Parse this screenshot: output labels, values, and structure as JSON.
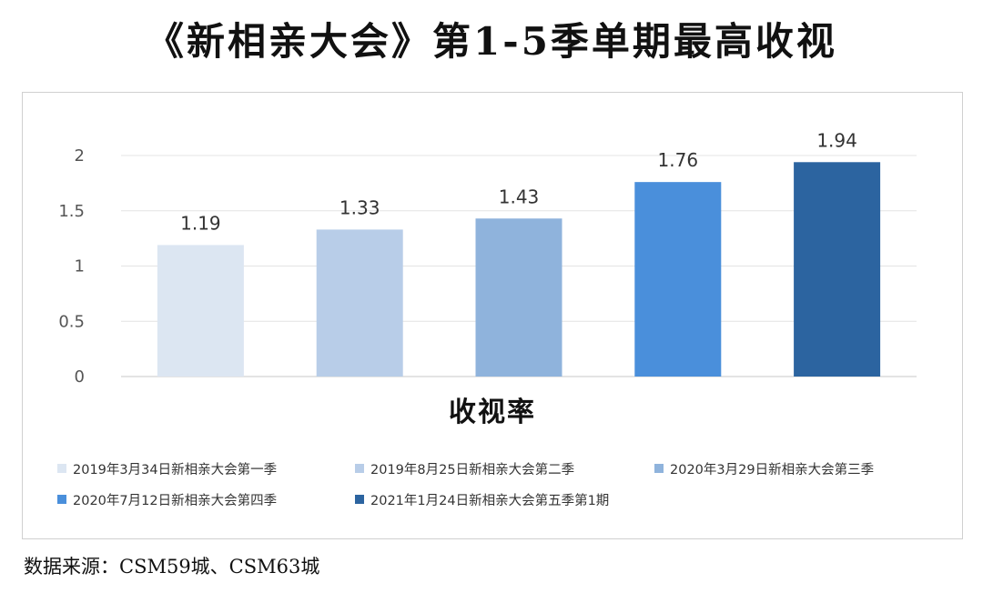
{
  "title": "《新相亲大会》第1-5季单期最高收视",
  "source": "数据来源：CSM59城、CSM63城",
  "chart_data": {
    "type": "bar",
    "title": "《新相亲大会》第1-5季单期最高收视",
    "xlabel": "收视率",
    "ylabel": "",
    "ylim": [
      0,
      2
    ],
    "yticks": [
      "0",
      "0.5",
      "1",
      "1.5",
      "2"
    ],
    "grid": true,
    "legend_position": "bottom",
    "categories": [
      "2019年3月34日新相亲大会第一季",
      "2019年8月25日新相亲大会第二季",
      "2020年3月29日新相亲大会第三季",
      "2020年7月12日新相亲大会第四季",
      "2021年1月24日新相亲大会第五季第1期"
    ],
    "values": [
      1.19,
      1.33,
      1.43,
      1.76,
      1.94
    ],
    "data_labels": [
      "1.19",
      "1.33",
      "1.43",
      "1.76",
      "1.94"
    ],
    "colors": [
      "#dce6f2",
      "#b8cde8",
      "#8fb3dc",
      "#4a8fdb",
      "#2c64a0"
    ]
  }
}
